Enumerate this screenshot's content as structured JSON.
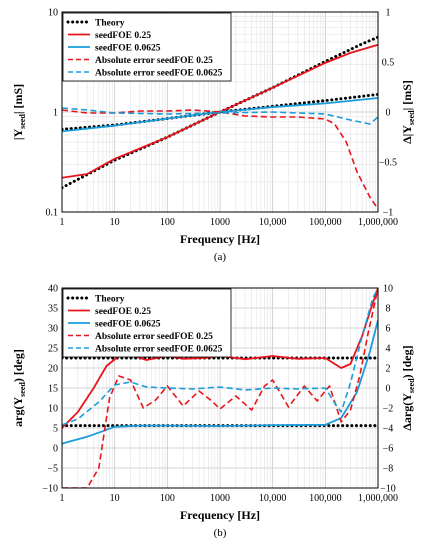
{
  "chart_data": [
    {
      "type": "line",
      "caption": "(a)",
      "xlabel": "Frequency [Hz]",
      "ylabel": "|Y_seed| [mS]",
      "ylabel_main": "|Y",
      "ylabel_sub": "seed",
      "ylabel_tail": "| [mS]",
      "y2label": "Δ|Y_seed| [mS]",
      "y2label_main": "Δ|Y",
      "y2label_sub": "seed",
      "y2label_tail": "| [mS]",
      "xscale": "log",
      "yscale": "log",
      "xlim": [
        1,
        1000000
      ],
      "ylim": [
        0.1,
        10
      ],
      "y2lim": [
        -1,
        1
      ],
      "grid": true,
      "legend_position": "top-left",
      "x_ticks": [
        1,
        10,
        100,
        1000,
        10000,
        100000,
        1000000
      ],
      "x_tick_labels": [
        "1",
        "10",
        "100",
        "1000",
        "10,000",
        "100,000",
        "1,000,000"
      ],
      "y_ticks": [
        0.1,
        1,
        10
      ],
      "y_tick_labels": [
        "0.1",
        "1",
        "10"
      ],
      "y2_ticks": [
        -1,
        -0.5,
        0,
        0.5,
        1
      ],
      "y2_tick_labels": [
        "−1",
        "−0.5",
        "0",
        "0.5",
        "1"
      ],
      "series": [
        {
          "name": "Theory",
          "axis": "left",
          "color": "#000000",
          "style": "dotted",
          "x": [
            1,
            10,
            100,
            1000,
            10000,
            100000,
            500000,
            1000000
          ],
          "y": [
            0.175,
            0.33,
            0.56,
            1.0,
            1.75,
            3.2,
            4.8,
            5.6
          ]
        },
        {
          "name": "",
          "axis": "left",
          "color": "#000000",
          "style": "dotted",
          "x": [
            1,
            10,
            100,
            1000,
            10000,
            100000,
            1000000
          ],
          "y": [
            0.67,
            0.74,
            0.86,
            1.0,
            1.14,
            1.3,
            1.5
          ]
        },
        {
          "name": "seedFOE 0.25",
          "axis": "left",
          "color": "#e8141c",
          "style": "solid",
          "x": [
            1,
            3,
            10,
            100,
            1000,
            10000,
            100000,
            300000,
            1000000
          ],
          "y": [
            0.22,
            0.24,
            0.34,
            0.56,
            1.0,
            1.75,
            3.1,
            3.9,
            4.7
          ]
        },
        {
          "name": "seedFOE 0.0625",
          "axis": "left",
          "color": "#1a9ddb",
          "style": "solid",
          "x": [
            1,
            10,
            100,
            1000,
            10000,
            100000,
            1000000
          ],
          "y": [
            0.64,
            0.73,
            0.86,
            1.0,
            1.12,
            1.22,
            1.38
          ]
        },
        {
          "name": "Absolute error seedFOE 0.25",
          "axis": "right",
          "color": "#e8141c",
          "style": "dashed",
          "x": [
            1,
            3,
            10,
            30,
            100,
            300,
            1000,
            3000,
            10000,
            30000,
            100000,
            150000,
            250000,
            400000,
            700000,
            1000000
          ],
          "y": [
            0.02,
            -0.01,
            -0.01,
            0.01,
            0.01,
            0.02,
            0.0,
            -0.04,
            -0.05,
            -0.05,
            -0.07,
            -0.12,
            -0.3,
            -0.6,
            -0.85,
            -0.97
          ]
        },
        {
          "name": "Absolute error seedFOE 0.0625",
          "axis": "right",
          "color": "#1a9ddb",
          "style": "dashed",
          "x": [
            1,
            3,
            10,
            100,
            1000,
            10000,
            100000,
            300000,
            700000,
            1000000
          ],
          "y": [
            0.04,
            0.02,
            -0.01,
            -0.02,
            -0.01,
            0.0,
            -0.02,
            -0.08,
            -0.12,
            -0.05
          ]
        }
      ]
    },
    {
      "type": "line",
      "caption": "(b)",
      "xlabel": "Frequency [Hz]",
      "ylabel": "arg(Y_seed) [deg]",
      "ylabel_main": "arg(Y",
      "ylabel_sub": "seed",
      "ylabel_tail": ") [deg]",
      "y2label": "Δarg(Y_seed) [deg]",
      "y2label_main": "Δarg(Y",
      "y2label_sub": "seed",
      "y2label_tail": ") [deg]",
      "xscale": "log",
      "xlim": [
        1,
        1000000
      ],
      "ylim": [
        -10,
        40
      ],
      "y2lim": [
        -10,
        10
      ],
      "grid": true,
      "legend_position": "top-left",
      "x_ticks": [
        1,
        10,
        100,
        1000,
        10000,
        100000,
        1000000
      ],
      "x_tick_labels": [
        "1",
        "10",
        "100",
        "1000",
        "10,000",
        "100,000",
        "1,000,000"
      ],
      "y_ticks": [
        -10,
        -5,
        0,
        5,
        10,
        15,
        20,
        25,
        30,
        35,
        40
      ],
      "y_tick_labels": [
        "−10",
        "−5",
        "0",
        "5",
        "10",
        "15",
        "20",
        "25",
        "30",
        "35",
        "40"
      ],
      "y2_ticks": [
        -10,
        -8,
        -6,
        -4,
        -2,
        0,
        2,
        4,
        6,
        8,
        10
      ],
      "y2_tick_labels": [
        "−10",
        "−8",
        "−6",
        "−4",
        "−2",
        "0",
        "2",
        "4",
        "6",
        "8",
        "10"
      ],
      "series": [
        {
          "name": "Theory",
          "axis": "left",
          "color": "#000000",
          "style": "dotted",
          "x": [
            1,
            1000000
          ],
          "y": [
            22.5,
            22.5
          ]
        },
        {
          "name": "",
          "axis": "left",
          "color": "#000000",
          "style": "dotted",
          "x": [
            1,
            1000000
          ],
          "y": [
            5.6,
            5.6
          ]
        },
        {
          "name": "seedFOE 0.25",
          "axis": "left",
          "color": "#e8141c",
          "style": "solid",
          "x": [
            1,
            2,
            4,
            7,
            12,
            20,
            40,
            100,
            200,
            500,
            1000,
            3000,
            10000,
            30000,
            100000,
            200000,
            300000,
            500000,
            700000,
            1000000
          ],
          "y": [
            5,
            9,
            15,
            20.5,
            23,
            23.3,
            22,
            23,
            22.3,
            22.5,
            23,
            22.2,
            23,
            22.3,
            22.5,
            20,
            21,
            28,
            34,
            40
          ]
        },
        {
          "name": "seedFOE 0.0625",
          "axis": "left",
          "color": "#1a9ddb",
          "style": "solid",
          "x": [
            1,
            3,
            10,
            30,
            100,
            1000,
            10000,
            100000,
            200000,
            400000,
            700000,
            1000000
          ],
          "y": [
            1.1,
            2.8,
            5.3,
            5.6,
            5.6,
            5.5,
            5.7,
            5.8,
            7.5,
            14,
            24,
            32
          ]
        },
        {
          "name": "Absolute error seedFOE 0.25",
          "axis": "right",
          "color": "#e8141c",
          "style": "dashed",
          "x": [
            1,
            3,
            5,
            8,
            12,
            20,
            35,
            60,
            100,
            200,
            400,
            700,
            1000,
            2000,
            4000,
            7000,
            10000,
            20000,
            40000,
            70000,
            120000,
            200000,
            300000,
            450000,
            650000,
            1000000
          ],
          "y": [
            -10,
            -10,
            -8,
            -1,
            1.2,
            0.8,
            -2,
            -1.2,
            0.2,
            -1.8,
            -0.3,
            -1.3,
            -2.1,
            -0.8,
            -2.2,
            0.2,
            0.8,
            -1.9,
            0.2,
            -1.3,
            0.2,
            -3.4,
            -2.2,
            1.2,
            5.5,
            10
          ]
        },
        {
          "name": "Absolute error seedFOE 0.0625",
          "axis": "right",
          "color": "#1a9ddb",
          "style": "dashed",
          "x": [
            1,
            2,
            5,
            10,
            20,
            40,
            100,
            300,
            1000,
            3000,
            10000,
            30000,
            100000,
            150000,
            200000,
            300000,
            500000,
            800000,
            1000000
          ],
          "y": [
            -3.7,
            -3.1,
            -1.4,
            0.3,
            0.6,
            0.1,
            0.0,
            -0.1,
            0.1,
            -0.2,
            0.0,
            -0.1,
            0.0,
            -1.5,
            -2.4,
            0.5,
            5.2,
            9,
            10
          ]
        }
      ]
    }
  ]
}
